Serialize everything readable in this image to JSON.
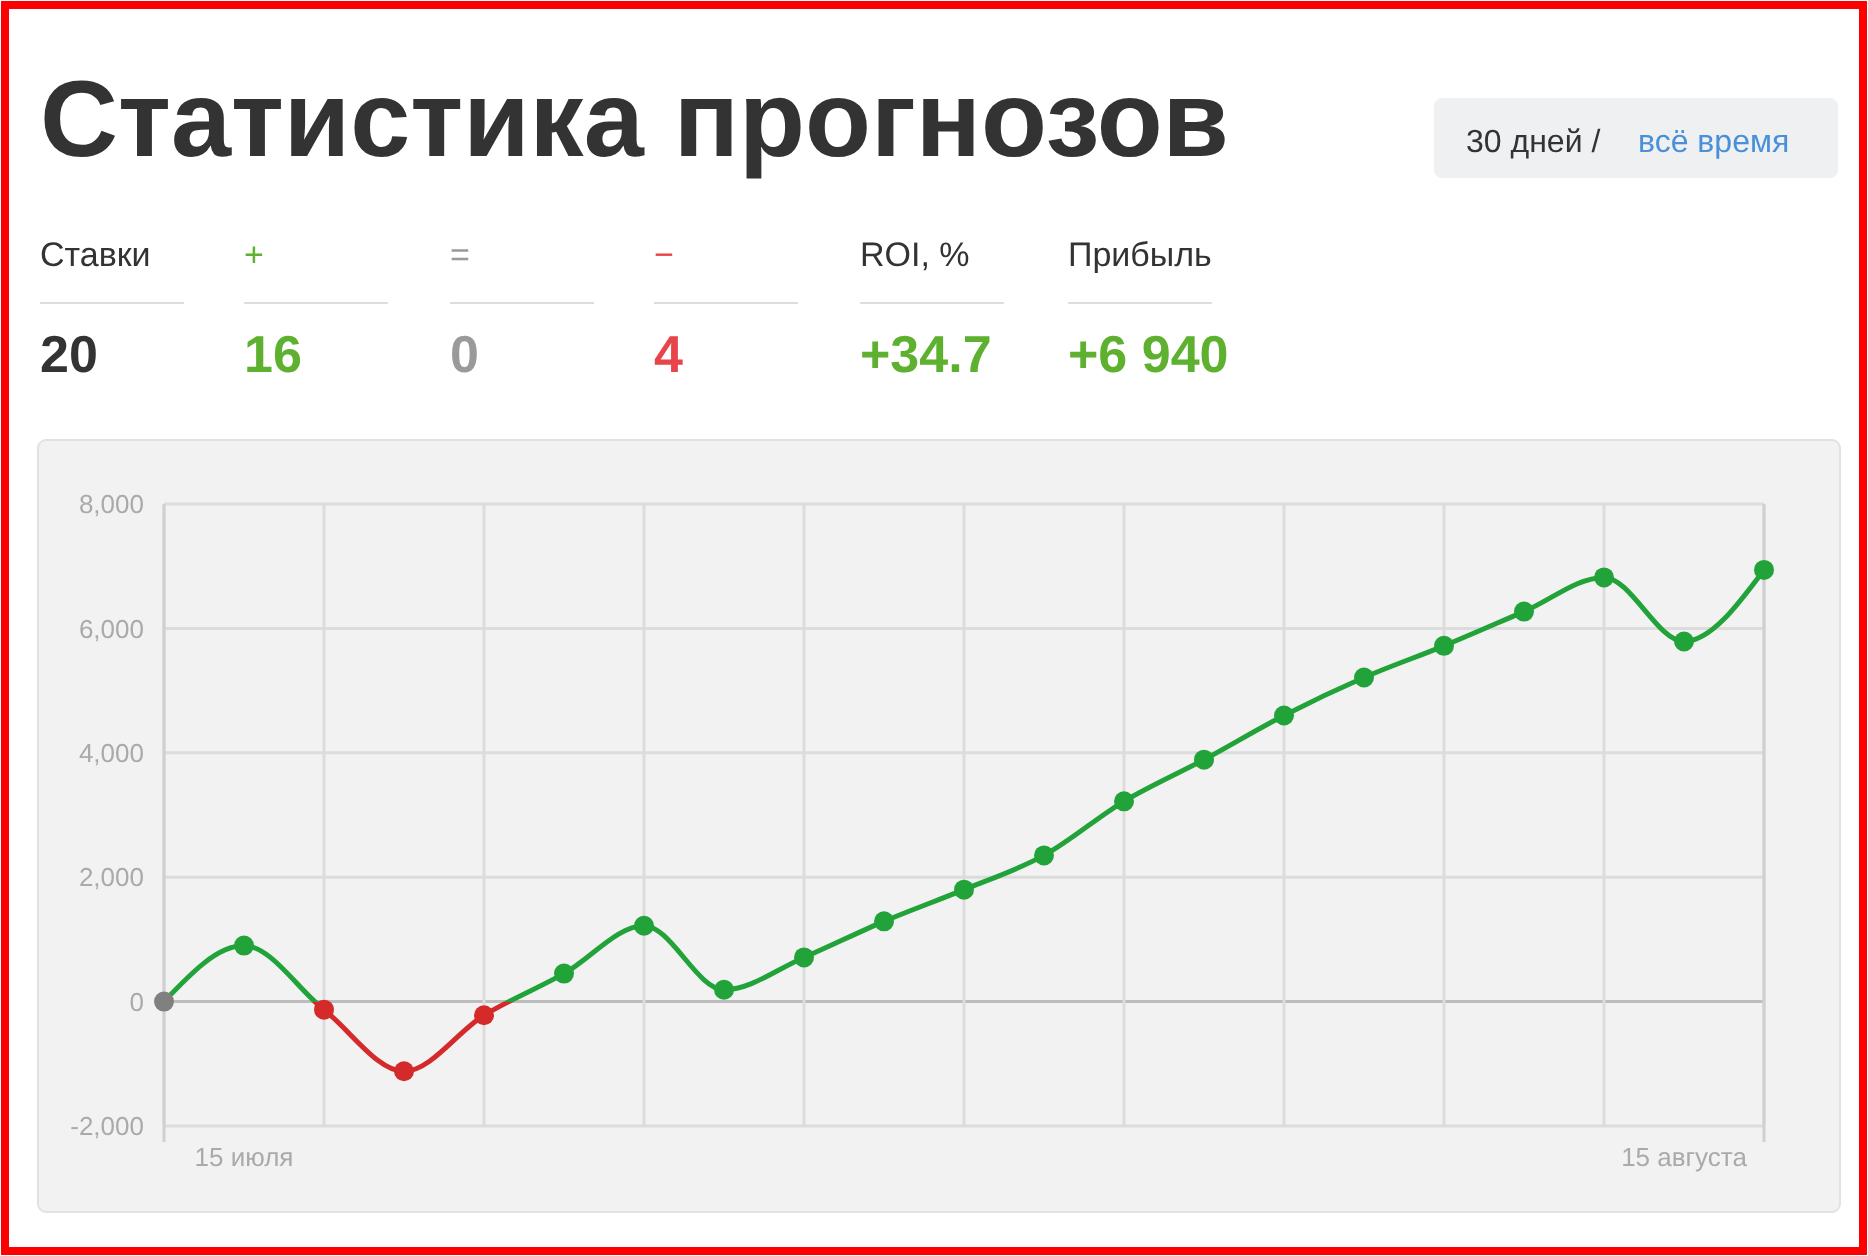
{
  "chart_data": {
    "type": "line",
    "title": "Статистика прогнозов",
    "annotations": [
      "30 дней /",
      "всё время",
      "Ставки",
      "20",
      "+",
      "16",
      "=",
      "0",
      "−",
      "4",
      "ROI, %",
      "+34.7",
      "Прибыль",
      "+6 940"
    ],
    "categories": [
      null,
      "15 июля",
      null,
      null,
      null,
      null,
      null,
      null,
      null,
      null,
      null,
      null,
      null,
      null,
      null,
      null,
      null,
      null,
      null,
      "15 августа",
      null
    ],
    "series": [
      {
        "color": "#22a33a",
        "values": [
          0,
          900,
          -130,
          -1120,
          -220,
          450,
          1220,
          190,
          710,
          1290,
          1800,
          2350,
          3220,
          3890,
          4600,
          5210,
          5720,
          6270,
          6820,
          5790,
          6940
        ],
        "colors": [
          "#808080",
          "#22a33a",
          "#d42a2a",
          "#d42a2a",
          "#d42a2a",
          "#22a33a",
          "#22a33a",
          "#22a33a",
          "#22a33a",
          "#22a33a",
          "#22a33a",
          "#22a33a",
          "#22a33a",
          "#22a33a",
          "#22a33a",
          "#22a33a",
          "#22a33a",
          "#22a33a",
          "#22a33a",
          "#22a33a",
          "#22a33a"
        ]
      }
    ],
    "ylim": [
      -2000,
      8000
    ],
    "yticks": [
      {
        "value": -2000,
        "label": "-2,000"
      },
      0,
      {
        "value": 2000,
        "label": "2,000"
      },
      {
        "value": 4000,
        "label": "4,000"
      },
      {
        "value": 6000,
        "label": "6,000"
      },
      {
        "value": 8000,
        "label": "8,000"
      }
    ],
    "grid": true,
    "marker": "circle"
  }
}
